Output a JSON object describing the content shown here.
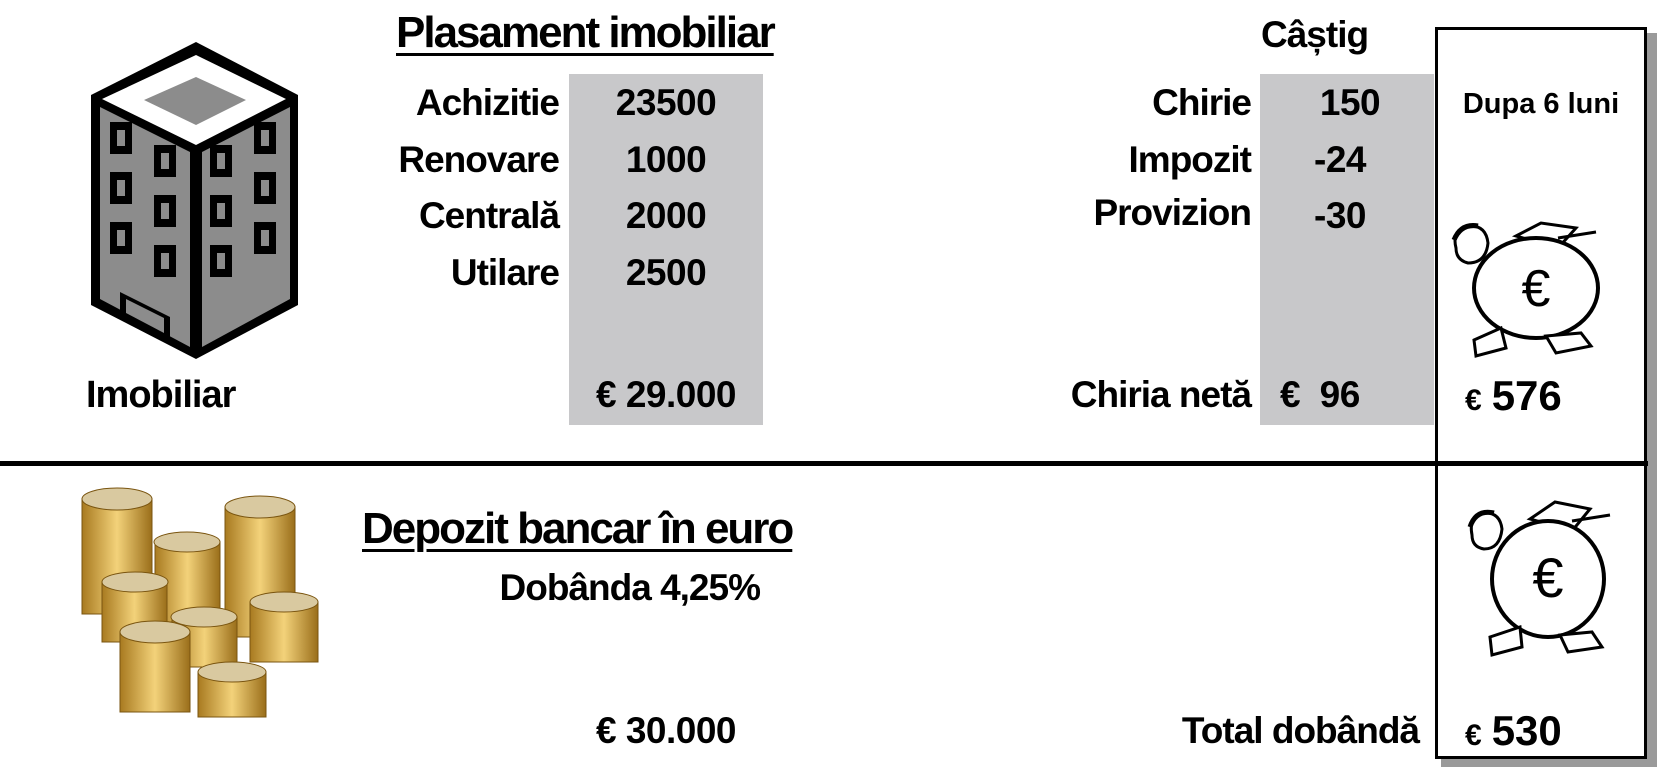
{
  "real_estate": {
    "icon": "building-icon",
    "label": "Imobiliar",
    "title": "Plasament imobiliar",
    "items": [
      {
        "label": "Achizitie",
        "value": "23500"
      },
      {
        "label": "Renovare",
        "value": "1000"
      },
      {
        "label": "Centrală",
        "value": "2000"
      },
      {
        "label": "Utilare",
        "value": "2500"
      }
    ],
    "total_currency": "€",
    "total": "29.000",
    "gain_title": "Câștig",
    "gains": [
      {
        "label": "Chirie",
        "value": "150"
      },
      {
        "label": "Impozit",
        "value": "-24"
      },
      {
        "label": "Provizion",
        "value": "-30"
      }
    ],
    "net_rent_label": "Chiria netă",
    "net_rent_currency": "€",
    "net_rent": "96"
  },
  "result_column": {
    "header": "Dupa 6 luni",
    "icon": "money-bag-icon",
    "real_estate_currency": "€",
    "real_estate_result": "576",
    "deposit_currency": "€",
    "deposit_result": "530"
  },
  "deposit": {
    "icon": "euro-coins-icon",
    "title": "Depozit bancar în euro",
    "interest_label": "Dobânda 4,25%",
    "amount_currency": "€",
    "amount": "30.000",
    "total_interest_label": "Total dobândă"
  },
  "colors": {
    "shade": "#c8c8ca",
    "building_gray": "#8c8c8c",
    "coin_gold": "#d4a63a"
  }
}
